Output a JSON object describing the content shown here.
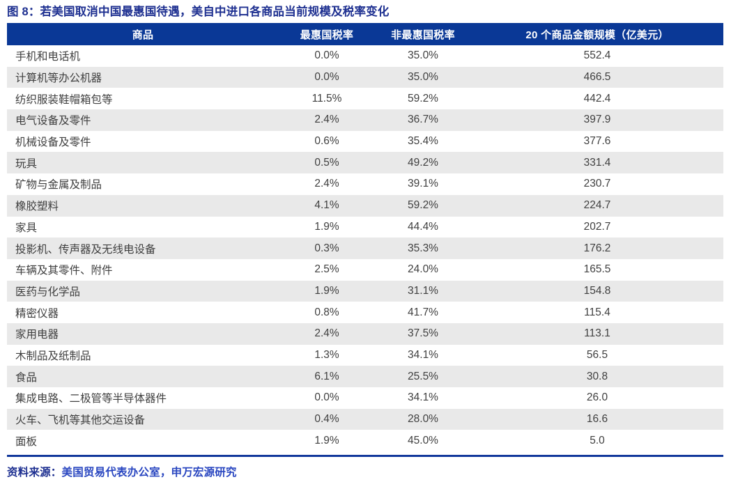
{
  "title": "图 8：若美国取消中国最惠国待遇，美自中进口各商品当前规模及税率变化",
  "chart_data": {
    "type": "table",
    "title": "若美国取消中国最惠国待遇，美自中进口各商品当前规模及税率变化",
    "columns": [
      "商品",
      "最惠国税率",
      "非最惠国税率",
      "20 个商品金额规模（亿美元）"
    ],
    "rows": [
      [
        "手机和电话机",
        "0.0%",
        "35.0%",
        "552.4"
      ],
      [
        "计算机等办公机器",
        "0.0%",
        "35.0%",
        "466.5"
      ],
      [
        "纺织服装鞋帽箱包等",
        "11.5%",
        "59.2%",
        "442.4"
      ],
      [
        "电气设备及零件",
        "2.4%",
        "36.7%",
        "397.9"
      ],
      [
        "机械设备及零件",
        "0.6%",
        "35.4%",
        "377.6"
      ],
      [
        "玩具",
        "0.5%",
        "49.2%",
        "331.4"
      ],
      [
        "矿物与金属及制品",
        "2.4%",
        "39.1%",
        "230.7"
      ],
      [
        "橡胶塑料",
        "4.1%",
        "59.2%",
        "224.7"
      ],
      [
        "家具",
        "1.9%",
        "44.4%",
        "202.7"
      ],
      [
        "投影机、传声器及无线电设备",
        "0.3%",
        "35.3%",
        "176.2"
      ],
      [
        "车辆及其零件、附件",
        "2.5%",
        "24.0%",
        "165.5"
      ],
      [
        "医药与化学品",
        "1.9%",
        "31.1%",
        "154.8"
      ],
      [
        "精密仪器",
        "0.8%",
        "41.7%",
        "115.4"
      ],
      [
        "家用电器",
        "2.4%",
        "37.5%",
        "113.1"
      ],
      [
        "木制品及纸制品",
        "1.3%",
        "34.1%",
        "56.5"
      ],
      [
        "食品",
        "6.1%",
        "25.5%",
        "30.8"
      ],
      [
        "集成电路、二极管等半导体器件",
        "0.0%",
        "34.1%",
        "26.0"
      ],
      [
        "火车、飞机等其他交运设备",
        "0.4%",
        "28.0%",
        "16.6"
      ],
      [
        "面板",
        "1.9%",
        "45.0%",
        "5.0"
      ]
    ],
    "layout": {
      "striped_rows": true,
      "header_position": "top"
    }
  },
  "footer": {
    "label": "资料来源：",
    "text": "美国贸易代表办公室，申万宏源研究"
  },
  "colors": {
    "header_bg": "#0A3896",
    "title_text": "#1D2F90",
    "stripe": "#E9E9E9",
    "body_text": "#3F3F3F",
    "divider": "#12389B",
    "source_text": "#2946C0"
  }
}
